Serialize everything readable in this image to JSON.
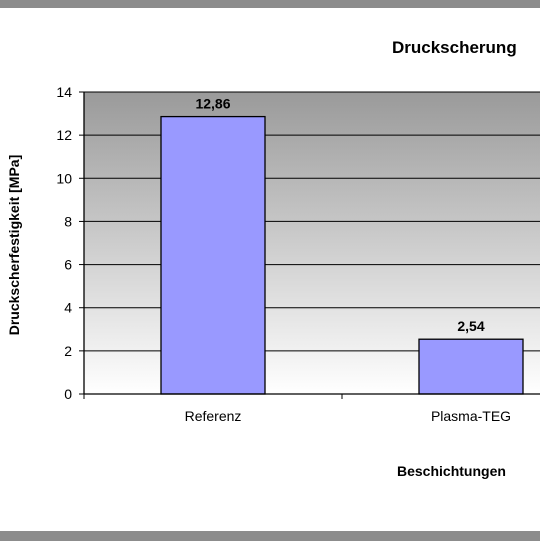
{
  "chart_data": {
    "type": "bar",
    "title": "Druckscherung",
    "xlabel": "Beschichtungen",
    "ylabel": "Druckscherfestigkeit [MPa]",
    "categories": [
      "Referenz",
      "Plasma-TEG"
    ],
    "values": [
      12.86,
      2.54
    ],
    "value_labels": [
      "12,86",
      "2,54"
    ],
    "ylim": [
      0,
      14
    ],
    "yticks": [
      0,
      2,
      4,
      6,
      8,
      10,
      12,
      14
    ],
    "grid": true,
    "legend": "none",
    "colors": {
      "bar": "#9999ff",
      "bar_edge": "#000000",
      "plot_bg_top": "#9a9a9a",
      "plot_bg_bottom": "#ffffff"
    }
  }
}
